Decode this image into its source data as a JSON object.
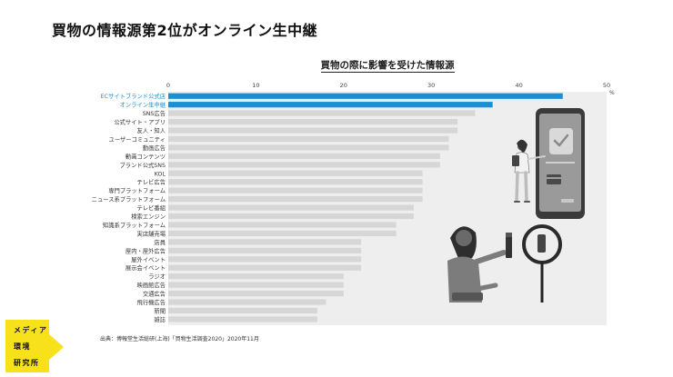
{
  "page": {
    "title": "買物の情報源第2位がオンライン生中継",
    "source": "出典：博報堂生活総研(上海)「買物生活調査2020」2020年11月"
  },
  "logo": {
    "lines": [
      "メディア",
      "環境",
      "研究所"
    ],
    "color": "#f7e11b"
  },
  "colors": {
    "highlight": "#1b8fd2",
    "bar": "#d6d6d6",
    "plot_background": "#eeeeee"
  },
  "chart_data": {
    "type": "bar",
    "orientation": "horizontal",
    "title": "買物の際に影響を受けた情報源",
    "unit": "%",
    "xlim": [
      0,
      50
    ],
    "xticks": [
      "0",
      "10",
      "20",
      "30",
      "40",
      "50"
    ],
    "categories": [
      "ECサイトブランド公式店",
      "オンライン生中継",
      "SNS広告",
      "公式サイト・アプリ",
      "友人・知人",
      "ユーザーコミュニティ",
      "動画広告",
      "動画コンテンツ",
      "ブランド公式SNS",
      "KOL",
      "テレビ広告",
      "専門プラットフォーム",
      "ニュース系プラットフォーム",
      "テレビ番組",
      "検索エンジン",
      "知識系プラットフォーム",
      "実店舗売場",
      "店員",
      "屋内・屋外広告",
      "屋外イベント",
      "展示会イベント",
      "ラジオ",
      "映画館広告",
      "交通広告",
      "飛行機広告",
      "新聞",
      "雑誌"
    ],
    "values": [
      45,
      37,
      35,
      33,
      33,
      32,
      32,
      31,
      31,
      29,
      29,
      29,
      29,
      28,
      28,
      26,
      26,
      22,
      22,
      22,
      22,
      20,
      20,
      20,
      18,
      17,
      17
    ],
    "highlighted": [
      "ECサイトブランド公式店",
      "オンライン生中継"
    ]
  }
}
